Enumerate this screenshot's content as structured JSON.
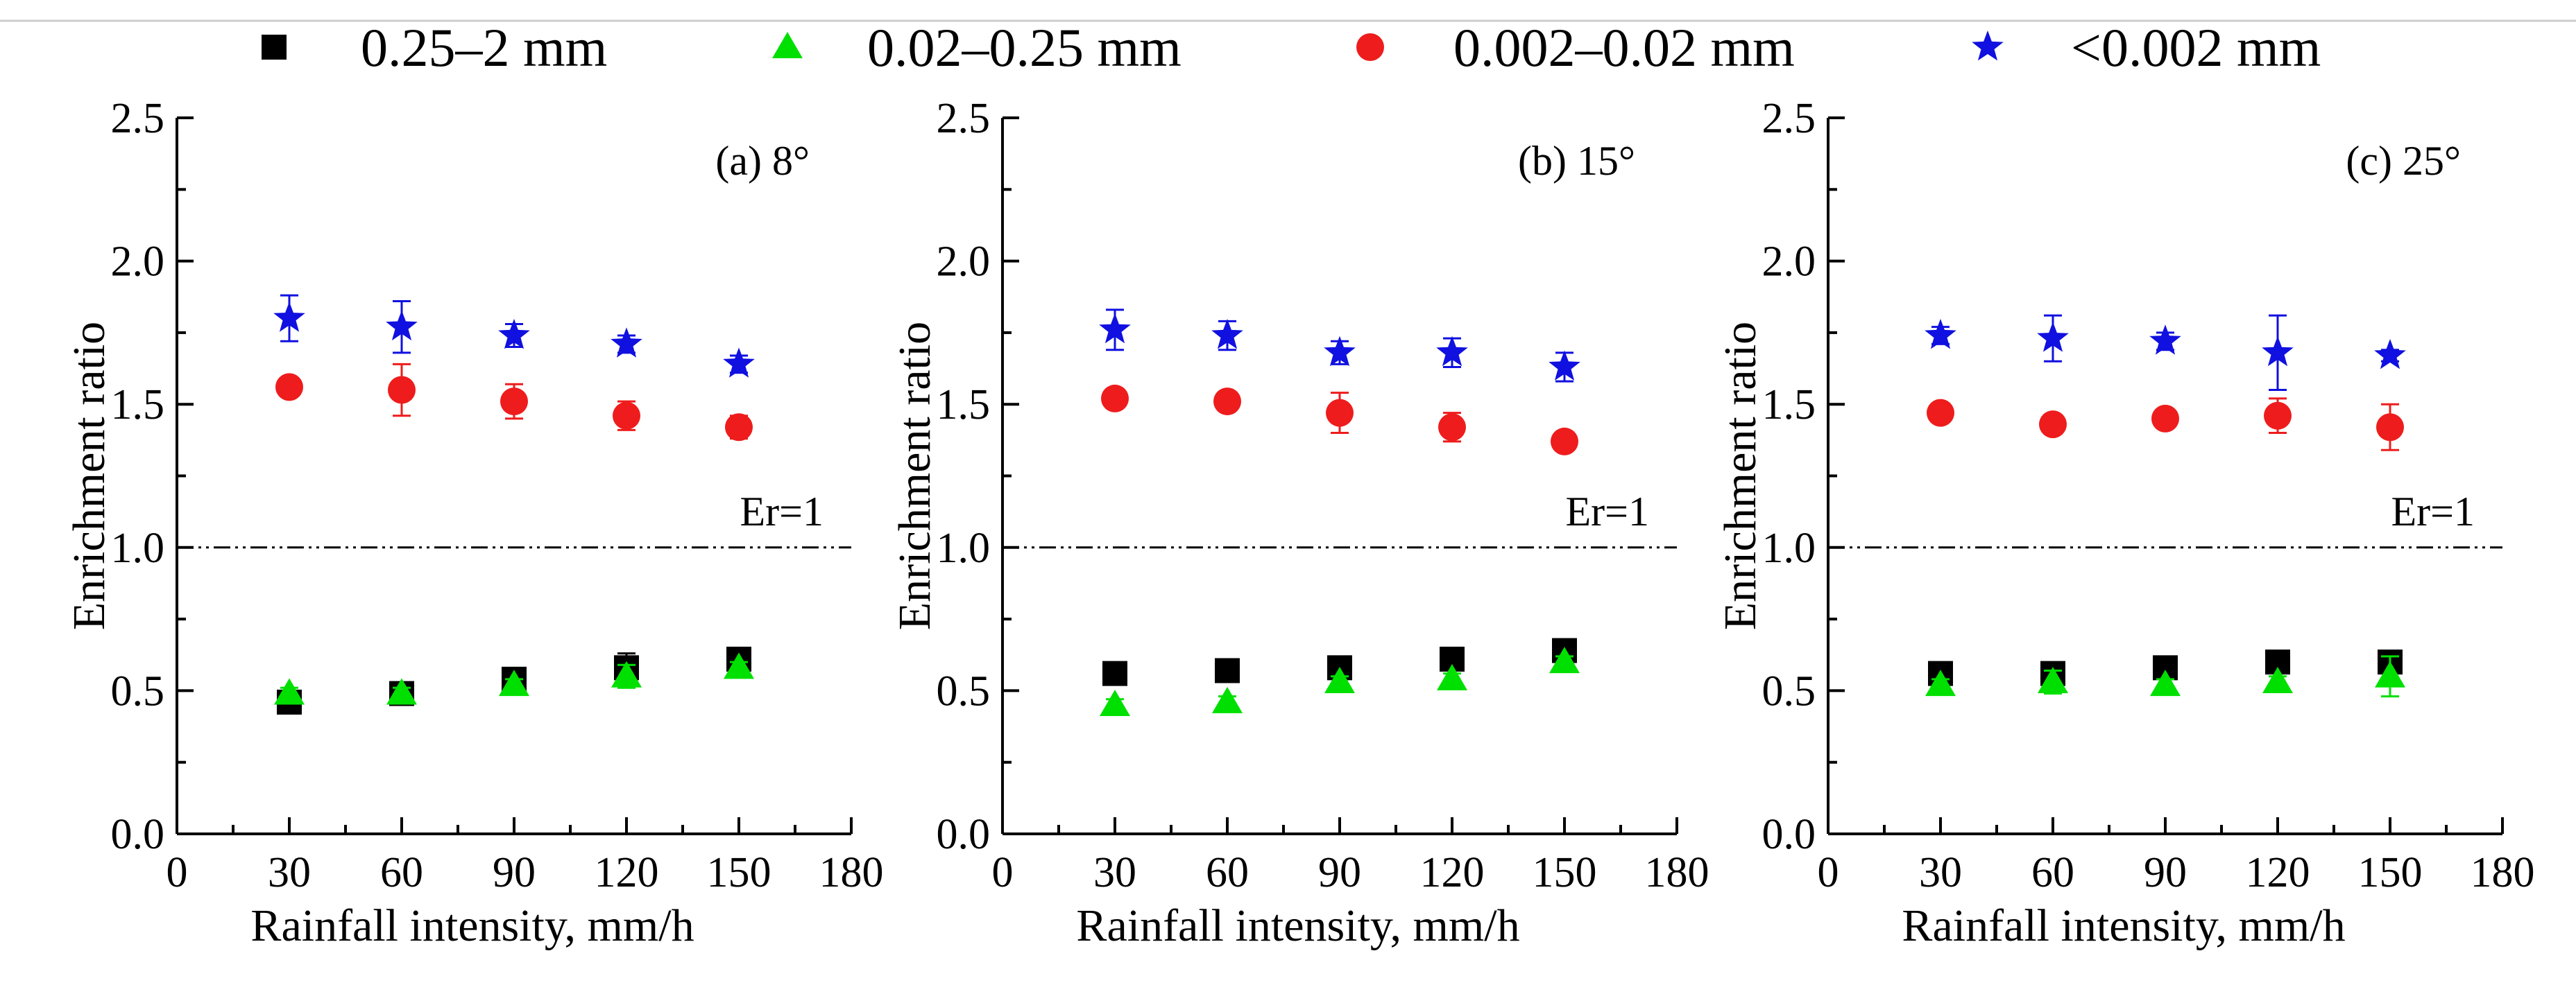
{
  "legend": [
    {
      "label": "0.25–2 mm",
      "marker": "square",
      "color": "#000000"
    },
    {
      "label": "0.02–0.25 mm",
      "marker": "triangle",
      "color": "#00e000"
    },
    {
      "label": "0.002–0.02 mm",
      "marker": "circle",
      "color": "#ee1c1c"
    },
    {
      "label": "<0.002 mm",
      "marker": "star",
      "color": "#1010e0"
    }
  ],
  "colors": {
    "axis": "#000000",
    "refline": "#000000"
  },
  "chart_data": [
    {
      "type": "scatter",
      "panel_label": "(a) 8°",
      "xlabel": "Rainfall intensity, mm/h",
      "ylabel": "Enrichment ratio",
      "xlim": [
        0,
        180
      ],
      "ylim": [
        0,
        2.5
      ],
      "xticks": [
        "0",
        "30",
        "60",
        "90",
        "120",
        "150",
        "180"
      ],
      "yticks": [
        "0.0",
        "0.5",
        "1.0",
        "1.5",
        "2.0",
        "2.5"
      ],
      "x": [
        30,
        60,
        90,
        120,
        150
      ],
      "reference_line": {
        "y": 1.0,
        "label": "Er=1"
      },
      "series": [
        {
          "name": "0.25–2 mm",
          "values": [
            0.46,
            0.49,
            0.54,
            0.58,
            0.61
          ],
          "errors": [
            0.02,
            0.02,
            0.03,
            0.05,
            0.03
          ]
        },
        {
          "name": "0.02–0.25 mm",
          "values": [
            0.49,
            0.49,
            0.52,
            0.55,
            0.58
          ],
          "errors": [
            0.02,
            0.02,
            0.02,
            0.04,
            0.02
          ]
        },
        {
          "name": "0.002–0.02 mm",
          "values": [
            1.56,
            1.55,
            1.51,
            1.46,
            1.42
          ],
          "errors": [
            0.03,
            0.09,
            0.06,
            0.05,
            0.04
          ]
        },
        {
          "name": "<0.002 mm",
          "values": [
            1.8,
            1.77,
            1.74,
            1.71,
            1.64
          ],
          "errors": [
            0.08,
            0.09,
            0.04,
            0.03,
            0.03
          ]
        }
      ]
    },
    {
      "type": "scatter",
      "panel_label": "(b) 15°",
      "xlabel": "Rainfall intensity, mm/h",
      "ylabel": "Enrichment ratio",
      "xlim": [
        0,
        180
      ],
      "ylim": [
        0,
        2.5
      ],
      "xticks": [
        "0",
        "30",
        "60",
        "90",
        "120",
        "150",
        "180"
      ],
      "yticks": [
        "0.0",
        "0.5",
        "1.0",
        "1.5",
        "2.0",
        "2.5"
      ],
      "x": [
        30,
        60,
        90,
        120,
        150
      ],
      "reference_line": {
        "y": 1.0,
        "label": "Er=1"
      },
      "series": [
        {
          "name": "0.25–2 mm",
          "values": [
            0.56,
            0.57,
            0.58,
            0.61,
            0.64
          ],
          "errors": [
            0.02,
            0.02,
            0.02,
            0.02,
            0.02
          ]
        },
        {
          "name": "0.02–0.25 mm",
          "values": [
            0.45,
            0.46,
            0.53,
            0.54,
            0.6
          ],
          "errors": [
            0.02,
            0.02,
            0.02,
            0.02,
            0.02
          ]
        },
        {
          "name": "0.002–0.02 mm",
          "values": [
            1.52,
            1.51,
            1.47,
            1.42,
            1.37
          ],
          "errors": [
            0.02,
            0.03,
            0.07,
            0.05,
            0.03
          ]
        },
        {
          "name": "<0.002 mm",
          "values": [
            1.76,
            1.74,
            1.68,
            1.68,
            1.63
          ],
          "errors": [
            0.07,
            0.05,
            0.04,
            0.05,
            0.05
          ]
        }
      ]
    },
    {
      "type": "scatter",
      "panel_label": "(c) 25°",
      "xlabel": "Rainfall intensity, mm/h",
      "ylabel": "Enrichment ratio",
      "xlim": [
        0,
        180
      ],
      "ylim": [
        0,
        2.5
      ],
      "xticks": [
        "0",
        "30",
        "60",
        "90",
        "120",
        "150",
        "180"
      ],
      "yticks": [
        "0.0",
        "0.5",
        "1.0",
        "1.5",
        "2.0",
        "2.5"
      ],
      "x": [
        30,
        60,
        90,
        120,
        150
      ],
      "reference_line": {
        "y": 1.0,
        "label": "Er=1"
      },
      "series": [
        {
          "name": "0.25–2 mm",
          "values": [
            0.56,
            0.56,
            0.58,
            0.6,
            0.6
          ],
          "errors": [
            0.02,
            0.02,
            0.02,
            0.02,
            0.02
          ]
        },
        {
          "name": "0.02–0.25 mm",
          "values": [
            0.52,
            0.53,
            0.52,
            0.53,
            0.55
          ],
          "errors": [
            0.02,
            0.04,
            0.02,
            0.02,
            0.07
          ]
        },
        {
          "name": "0.002–0.02 mm",
          "values": [
            1.47,
            1.43,
            1.45,
            1.46,
            1.42
          ],
          "errors": [
            0.02,
            0.02,
            0.02,
            0.06,
            0.08
          ]
        },
        {
          "name": "<0.002 mm",
          "values": [
            1.74,
            1.73,
            1.72,
            1.68,
            1.67
          ],
          "errors": [
            0.03,
            0.08,
            0.03,
            0.13,
            0.02
          ]
        }
      ]
    }
  ]
}
